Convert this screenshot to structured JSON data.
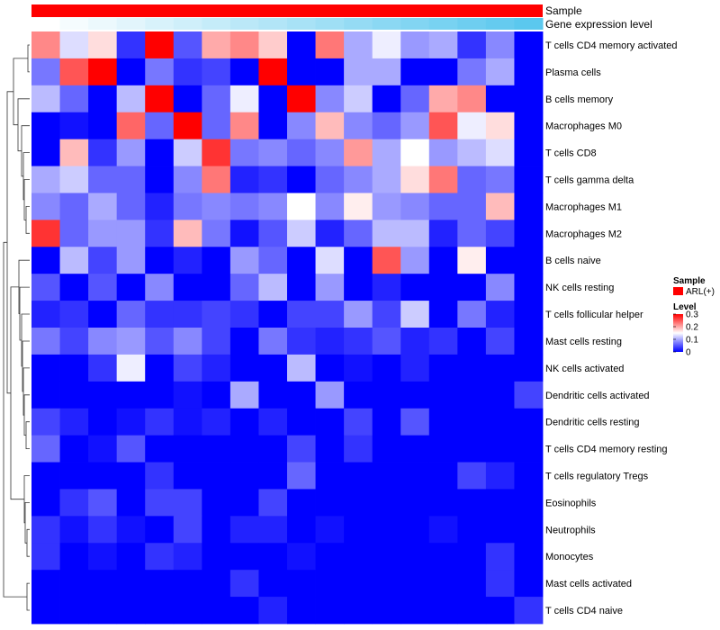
{
  "chart_data": {
    "type": "heatmap",
    "title": "",
    "annotation_rows": [
      {
        "name": "Sample",
        "color": "#ff0000"
      },
      {
        "name": "Gene expression level",
        "gradient": [
          "#ffffff",
          "#5bc8ee"
        ]
      }
    ],
    "rows": [
      "T cells CD4 memory activated",
      "Plasma cells",
      "B cells memory",
      "Macrophages M0",
      "T cells CD8",
      "T cells gamma delta",
      "Macrophages M1",
      "Macrophages M2",
      "B cells naive",
      "NK cells resting",
      "T cells follicular helper",
      "Mast cells resting",
      "NK cells activated",
      "Dendritic cells activated",
      "Dendritic cells resting",
      "T cells CD4 memory resting",
      "T cells regulatory  Tregs",
      "Eosinophils",
      "Neutrophils",
      "Monocytes",
      "Mast cells activated",
      "T cells CD4 naive"
    ],
    "n_columns": 18,
    "values": [
      [
        0.22,
        0.13,
        0.17,
        0.03,
        0.3,
        0.05,
        0.2,
        0.22,
        0.18,
        0.0,
        0.23,
        0.1,
        0.14,
        0.09,
        0.1,
        0.03,
        0.08,
        0.0
      ],
      [
        0.07,
        0.25,
        0.3,
        0.0,
        0.07,
        0.03,
        0.04,
        0.0,
        0.3,
        0.0,
        0.0,
        0.1,
        0.1,
        0.0,
        0.0,
        0.07,
        0.1,
        0.0
      ],
      [
        0.11,
        0.06,
        0.0,
        0.11,
        0.3,
        0.0,
        0.06,
        0.14,
        0.0,
        0.3,
        0.08,
        0.12,
        0.0,
        0.06,
        0.2,
        0.22,
        0.0,
        0.0
      ],
      [
        0.0,
        0.01,
        0.0,
        0.24,
        0.06,
        0.3,
        0.06,
        0.22,
        0.0,
        0.08,
        0.19,
        0.08,
        0.06,
        0.09,
        0.25,
        0.14,
        0.17,
        0.0
      ],
      [
        0.0,
        0.19,
        0.03,
        0.09,
        0.0,
        0.12,
        0.27,
        0.07,
        0.08,
        0.06,
        0.08,
        0.21,
        0.1,
        0.15,
        0.09,
        0.11,
        0.13,
        0.0
      ],
      [
        0.1,
        0.12,
        0.06,
        0.06,
        0.0,
        0.08,
        0.23,
        0.02,
        0.03,
        0.0,
        0.06,
        0.08,
        0.1,
        0.17,
        0.23,
        0.06,
        0.07,
        0.0
      ],
      [
        0.08,
        0.06,
        0.1,
        0.06,
        0.02,
        0.07,
        0.08,
        0.07,
        0.08,
        0.15,
        0.08,
        0.16,
        0.09,
        0.08,
        0.06,
        0.06,
        0.19,
        0.0
      ],
      [
        0.27,
        0.06,
        0.09,
        0.09,
        0.03,
        0.19,
        0.07,
        0.01,
        0.05,
        0.12,
        0.02,
        0.06,
        0.11,
        0.11,
        0.02,
        0.06,
        0.04,
        0.0
      ],
      [
        0.0,
        0.11,
        0.04,
        0.09,
        0.0,
        0.02,
        0.0,
        0.09,
        0.06,
        0.0,
        0.13,
        0.0,
        0.25,
        0.09,
        0.0,
        0.16,
        0.0,
        0.0
      ],
      [
        0.05,
        0.0,
        0.05,
        0.0,
        0.08,
        0.0,
        0.0,
        0.06,
        0.11,
        0.0,
        0.09,
        0.0,
        0.02,
        0.0,
        0.0,
        0.0,
        0.08,
        0.0
      ],
      [
        0.02,
        0.03,
        0.0,
        0.06,
        0.03,
        0.03,
        0.04,
        0.03,
        0.0,
        0.04,
        0.04,
        0.09,
        0.04,
        0.12,
        0.0,
        0.07,
        0.02,
        0.0
      ],
      [
        0.07,
        0.04,
        0.08,
        0.09,
        0.05,
        0.08,
        0.04,
        0.0,
        0.07,
        0.03,
        0.02,
        0.03,
        0.05,
        0.02,
        0.03,
        0.0,
        0.04,
        0.0
      ],
      [
        0.0,
        0.0,
        0.03,
        0.14,
        0.0,
        0.04,
        0.02,
        0.0,
        0.0,
        0.11,
        0.0,
        0.01,
        0.0,
        0.02,
        0.0,
        0.0,
        0.0,
        0.0
      ],
      [
        0.0,
        0.0,
        0.0,
        0.0,
        0.0,
        0.01,
        0.0,
        0.1,
        0.0,
        0.0,
        0.09,
        0.0,
        0.0,
        0.0,
        0.0,
        0.0,
        0.0,
        0.04
      ],
      [
        0.04,
        0.02,
        0.0,
        0.01,
        0.03,
        0.01,
        0.02,
        0.0,
        0.02,
        0.0,
        0.0,
        0.04,
        0.0,
        0.05,
        0.0,
        0.0,
        0.0,
        0.0
      ],
      [
        0.06,
        0.0,
        0.01,
        0.05,
        0.0,
        0.0,
        0.0,
        0.0,
        0.0,
        0.04,
        0.0,
        0.03,
        0.0,
        0.0,
        0.0,
        0.0,
        0.0,
        0.0
      ],
      [
        0.0,
        0.0,
        0.0,
        0.0,
        0.03,
        0.0,
        0.0,
        0.0,
        0.0,
        0.06,
        0.0,
        0.0,
        0.0,
        0.0,
        0.0,
        0.04,
        0.02,
        0.0
      ],
      [
        0.0,
        0.03,
        0.05,
        0.0,
        0.04,
        0.04,
        0.0,
        0.0,
        0.04,
        0.0,
        0.0,
        0.0,
        0.0,
        0.0,
        0.0,
        0.0,
        0.0,
        0.0
      ],
      [
        0.03,
        0.01,
        0.03,
        0.01,
        0.0,
        0.04,
        0.0,
        0.02,
        0.02,
        0.0,
        0.01,
        0.0,
        0.0,
        0.0,
        0.01,
        0.0,
        0.0,
        0.0
      ],
      [
        0.03,
        0.0,
        0.01,
        0.0,
        0.03,
        0.02,
        0.0,
        0.0,
        0.0,
        0.01,
        0.0,
        0.0,
        0.0,
        0.0,
        0.0,
        0.0,
        0.03,
        0.0
      ],
      [
        0.0,
        0.0,
        0.0,
        0.0,
        0.0,
        0.0,
        0.0,
        0.03,
        0.0,
        0.0,
        0.0,
        0.0,
        0.0,
        0.0,
        0.0,
        0.0,
        0.03,
        0.0
      ],
      [
        0.0,
        0.0,
        0.0,
        0.0,
        0.0,
        0.0,
        0.0,
        0.0,
        0.02,
        0.0,
        0.0,
        0.0,
        0.0,
        0.0,
        0.0,
        0.0,
        0.0,
        0.03
      ]
    ],
    "color_scale": {
      "min": 0,
      "max": 0.3,
      "low": "#0000ff",
      "mid": "#ffffff",
      "high": "#ff0000"
    },
    "legend": {
      "sample_title": "Sample",
      "sample_entry": "ARL(+)",
      "level_title": "Level",
      "ticks": [
        "0.3",
        "0.2",
        "0.1",
        "0"
      ],
      "tick_values": [
        0.3,
        0.2,
        0.1,
        0
      ]
    },
    "dendrogram": "rows"
  }
}
